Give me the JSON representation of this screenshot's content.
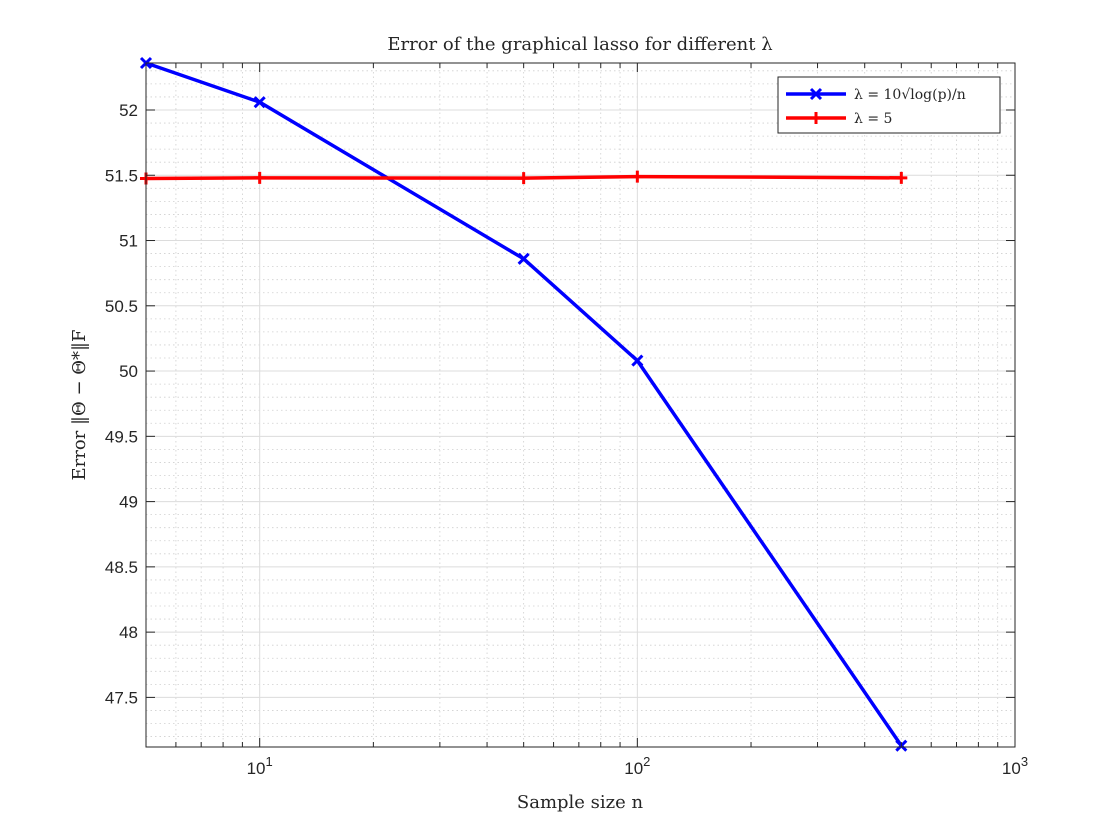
{
  "chart_data": {
    "type": "line",
    "title": "Error of the graphical lasso for different λ",
    "xlabel": "Sample size n",
    "ylabel": "Error ‖Θ − Θ*‖F",
    "x_scale": "log",
    "xlim": [
      5,
      1000
    ],
    "ylim": [
      47.12,
      52.36
    ],
    "x_ticks": [
      10,
      100,
      1000
    ],
    "x_tick_labels": [
      "10^1",
      "10^2",
      "10^3"
    ],
    "y_ticks": [
      47.5,
      48,
      48.5,
      49,
      49.5,
      50,
      50.5,
      51,
      51.5,
      52
    ],
    "y_tick_labels": [
      "47.5",
      "48",
      "48.5",
      "49",
      "49.5",
      "50",
      "50.5",
      "51",
      "51.5",
      "52"
    ],
    "grid": true,
    "minor_grid": true,
    "legend_position": "top-right",
    "series": [
      {
        "name": "λ = 10√log(p)/n",
        "color": "#0000ff",
        "marker": "x",
        "x": [
          5,
          10,
          50,
          100,
          500
        ],
        "y": [
          52.36,
          52.06,
          50.86,
          50.08,
          47.13
        ]
      },
      {
        "name": "λ = 5",
        "color": "#ff0000",
        "marker": "+",
        "x": [
          5,
          10,
          50,
          100,
          500
        ],
        "y": [
          51.475,
          51.48,
          51.478,
          51.49,
          51.48
        ]
      }
    ]
  }
}
